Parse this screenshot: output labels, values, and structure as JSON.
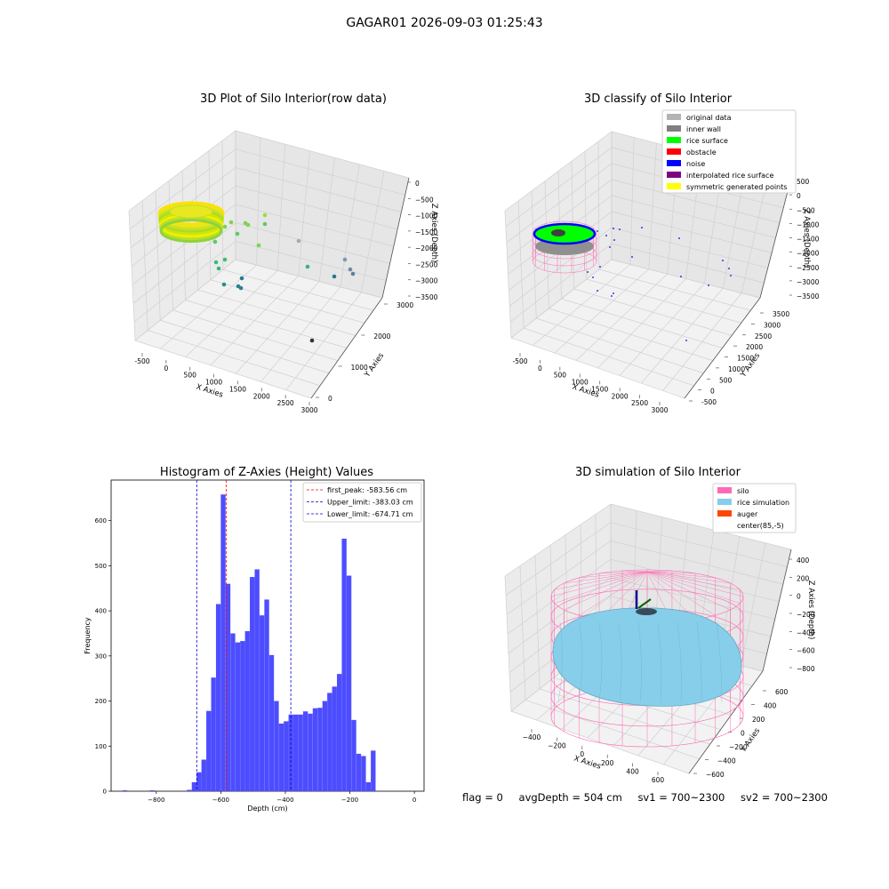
{
  "suptitle": "GAGAR01 2026-09-03 01:25:43",
  "status": {
    "flag": "flag = 0",
    "avg_depth": "avgDepth = 504 cm",
    "sv1": "sv1 = 700~2300",
    "sv2": "sv2 = 700~2300"
  },
  "colors": {
    "hist_bar": "#4d4dff",
    "first_peak": "#ff0000",
    "limits": "#0000cc",
    "silo": "#ff69b4",
    "rice": "#87ceeb",
    "auger": "#ff4500",
    "noise": "#0000ff",
    "rice_surface": "#00ff00",
    "inner_wall": "#808080",
    "original_data": "#b3b3b3",
    "obstacle": "#ff0000",
    "interp_surface": "#800080",
    "symmetric": "#ffff00"
  },
  "chart_data": [
    {
      "type": "scatter",
      "title": "3D Plot of Silo Interior(row data)",
      "xlabel": "X Axies",
      "ylabel": "Y Axies",
      "zlabel": "Z Axies (Depth)",
      "x_ticks": [
        "-500",
        "0",
        "500",
        "1000",
        "1500",
        "2000",
        "2500",
        "3000"
      ],
      "y_ticks": [
        "0",
        "1000",
        "2000",
        "3000"
      ],
      "z_ticks": [
        "0",
        "−500",
        "−1000",
        "−1500",
        "−2000",
        "−2500",
        "−3000",
        "−3500"
      ],
      "xlim": [
        -700,
        3300
      ],
      "ylim": [
        -500,
        3600
      ],
      "zlim": [
        -3800,
        100
      ],
      "colormap": "viridis",
      "ring": {
        "center": [
          85,
          -5
        ],
        "radius": 620,
        "z_range": [
          -800,
          -300
        ]
      },
      "points": [
        {
          "x": 400,
          "y": 700,
          "z": -1100
        },
        {
          "x": 600,
          "y": 850,
          "z": -1150
        },
        {
          "x": 700,
          "y": 900,
          "z": -1200
        },
        {
          "x": 850,
          "y": 1100,
          "z": -1100
        },
        {
          "x": 500,
          "y": 1000,
          "z": -1500
        },
        {
          "x": 300,
          "y": 800,
          "z": -1800
        },
        {
          "x": 1000,
          "y": 1500,
          "z": -1400
        },
        {
          "x": 200,
          "y": 700,
          "z": -2100
        },
        {
          "x": 100,
          "y": 600,
          "z": -2300
        },
        {
          "x": 150,
          "y": 650,
          "z": -2500
        },
        {
          "x": 1500,
          "y": 2000,
          "z": -1700
        },
        {
          "x": 2000,
          "y": 2300,
          "z": -2300
        },
        {
          "x": 600,
          "y": 1100,
          "z": -2600
        },
        {
          "x": 300,
          "y": 900,
          "z": -2800
        },
        {
          "x": 500,
          "y": 1000,
          "z": -2900
        },
        {
          "x": 550,
          "y": 1050,
          "z": -3000
        },
        {
          "x": 2600,
          "y": 2700,
          "z": -2500
        },
        {
          "x": 2800,
          "y": 2900,
          "z": -2700
        },
        {
          "x": 2900,
          "y": 3000,
          "z": -2800
        },
        {
          "x": 2400,
          "y": 2600,
          "z": -2900
        },
        {
          "x": 2100,
          "y": 1200,
          "z": -3600
        }
      ]
    },
    {
      "type": "scatter",
      "title": "3D classify of Silo Interior",
      "xlabel": "X Axies",
      "ylabel": "Y Axies",
      "zlabel": "Z Axies (Depth)",
      "x_ticks": [
        "-500",
        "0",
        "500",
        "1000",
        "1500",
        "2000",
        "2500",
        "3000"
      ],
      "y_ticks": [
        "-500",
        "0",
        "500",
        "1000",
        "1500",
        "2000",
        "2500",
        "3000",
        "3500"
      ],
      "z_ticks": [
        "500",
        "0",
        "−500",
        "−1000",
        "−1500",
        "−2000",
        "−2500",
        "−3000",
        "−3500"
      ],
      "xlim": [
        -700,
        3300
      ],
      "ylim": [
        -600,
        3700
      ],
      "zlim": [
        -3800,
        600
      ],
      "legend": [
        {
          "label": "original data",
          "color": "#b3b3b3"
        },
        {
          "label": "inner wall",
          "color": "#808080"
        },
        {
          "label": "rice surface",
          "color": "#00ff00"
        },
        {
          "label": "obstacle",
          "color": "#ff0000"
        },
        {
          "label": "noise",
          "color": "#0000ff"
        },
        {
          "label": "interpolated rice surface",
          "color": "#800080"
        },
        {
          "label": "symmetric generated points",
          "color": "#ffff00"
        }
      ],
      "legend_position": "top-right"
    },
    {
      "type": "bar",
      "title": "Histogram of Z-Axies (Height) Values",
      "xlabel": "Depth (cm)",
      "ylabel": "Frequency",
      "xlim": [
        -940,
        30
      ],
      "ylim": [
        0,
        690
      ],
      "x_ticks": [
        -800,
        -600,
        -400,
        -200,
        0
      ],
      "x_tick_labels": [
        "−800",
        "−600",
        "−400",
        "−200",
        "0"
      ],
      "y_ticks": [
        0,
        100,
        200,
        300,
        400,
        500,
        600
      ],
      "bin_start": -705,
      "bin_width": 15,
      "values": [
        3,
        20,
        42,
        70,
        178,
        252,
        415,
        658,
        460,
        350,
        330,
        333,
        355,
        475,
        492,
        390,
        425,
        302,
        200,
        150,
        155,
        170,
        170,
        170,
        177,
        172,
        184,
        185,
        200,
        218,
        232,
        260,
        560,
        478,
        158,
        83,
        78,
        20,
        90
      ],
      "outliers": [
        {
          "x": -905,
          "width": 15,
          "value": 2
        },
        {
          "x": -820,
          "width": 15,
          "value": 2
        }
      ],
      "vlines": [
        {
          "label": "first_peak: -583.56 cm",
          "x": -583.56,
          "color": "#ff0000"
        },
        {
          "label": "Upper_limit: -383.03 cm",
          "x": -383.03,
          "color": "#0000cc"
        },
        {
          "label": "Lower_limit: -674.71 cm",
          "x": -674.71,
          "color": "#0000cc"
        }
      ],
      "legend_position": "top-right"
    },
    {
      "type": "surface",
      "title": "3D simulation of Silo Interior",
      "xlabel": "X Axies",
      "ylabel": "Y Axies",
      "zlabel": "Z Axies (Depth)",
      "x_ticks": [
        "−400",
        "−200",
        "0",
        "200",
        "400",
        "600"
      ],
      "y_ticks": [
        "−600",
        "−400",
        "−200",
        "0",
        "200",
        "400",
        "600"
      ],
      "z_ticks": [
        "400",
        "200",
        "0",
        "−200",
        "−400",
        "−600",
        "−800"
      ],
      "xlim": [
        -600,
        750
      ],
      "ylim": [
        -750,
        700
      ],
      "zlim": [
        -950,
        450
      ],
      "legend": [
        {
          "label": "silo",
          "color": "#ff69b4"
        },
        {
          "label": "rice simulation",
          "color": "#87ceeb"
        },
        {
          "label": "auger",
          "color": "#ff4500"
        },
        {
          "label": "center(85,-5)",
          "color": "#ffffff"
        }
      ],
      "legend_position": "top-right"
    }
  ]
}
